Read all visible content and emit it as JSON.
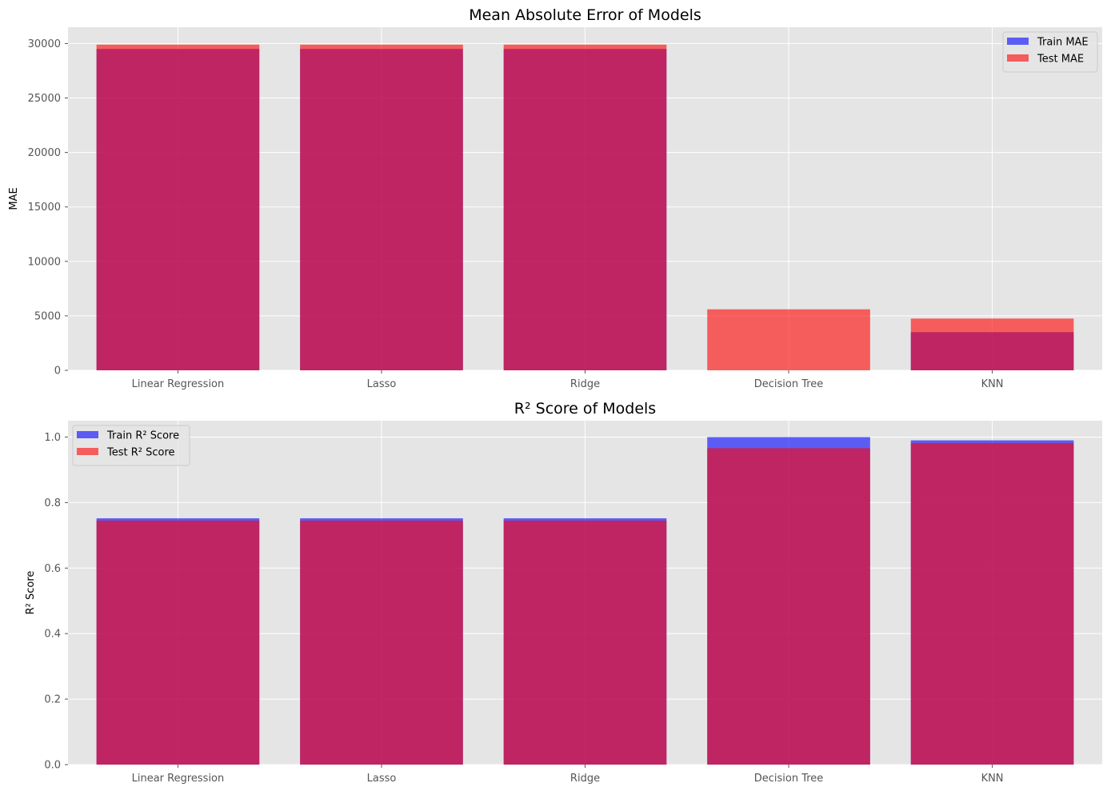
{
  "chart_data": [
    {
      "type": "bar",
      "title": "Mean Absolute Error of Models",
      "xlabel": "",
      "ylabel": "MAE",
      "categories": [
        "Linear Regression",
        "Lasso",
        "Ridge",
        "Decision Tree",
        "KNN"
      ],
      "ylim": [
        0,
        31500
      ],
      "yticks": [
        0,
        5000,
        10000,
        15000,
        20000,
        25000,
        30000
      ],
      "ytick_labels": [
        "0",
        "5000",
        "10000",
        "15000",
        "20000",
        "25000",
        "30000"
      ],
      "grid": true,
      "legend_position": "top-right",
      "series": [
        {
          "name": "Train MAE",
          "color": "#0000ff",
          "opacity": 0.6,
          "values": [
            29500,
            29500,
            29500,
            0,
            3500
          ]
        },
        {
          "name": "Test MAE",
          "color": "#ff0000",
          "opacity": 0.6,
          "values": [
            29900,
            29900,
            29900,
            5600,
            4750
          ]
        }
      ]
    },
    {
      "type": "bar",
      "title": "R² Score of Models",
      "xlabel": "",
      "ylabel": "R² Score",
      "categories": [
        "Linear Regression",
        "Lasso",
        "Ridge",
        "Decision Tree",
        "KNN"
      ],
      "ylim": [
        0,
        1.05
      ],
      "yticks": [
        0,
        0.2,
        0.4,
        0.6,
        0.8,
        1.0
      ],
      "ytick_labels": [
        "0.0",
        "0.2",
        "0.4",
        "0.6",
        "0.8",
        "1.0"
      ],
      "grid": true,
      "legend_position": "top-left",
      "series": [
        {
          "name": "Train R² Score",
          "color": "#0000ff",
          "opacity": 0.6,
          "values": [
            0.752,
            0.752,
            0.752,
            1.0,
            0.99
          ]
        },
        {
          "name": "Test R² Score",
          "color": "#ff0000",
          "opacity": 0.6,
          "values": [
            0.745,
            0.745,
            0.745,
            0.966,
            0.982
          ]
        }
      ]
    }
  ]
}
